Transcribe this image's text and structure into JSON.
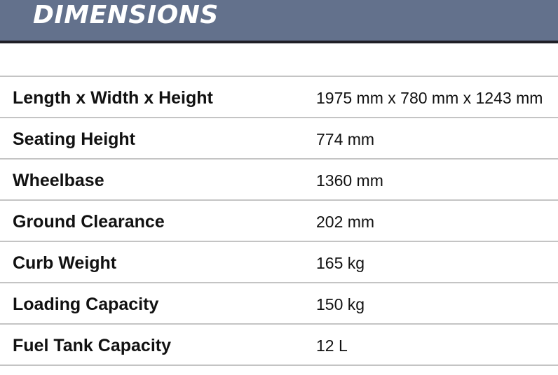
{
  "header": {
    "title": "DIMENSIONS",
    "background_color": "#63718c"
  },
  "rows": [
    {
      "label": "Length x Width x Height",
      "value": "1975 mm x 780 mm x 1243 mm"
    },
    {
      "label": "Seating Height",
      "value": "774 mm"
    },
    {
      "label": "Wheelbase",
      "value": "1360 mm"
    },
    {
      "label": "Ground Clearance",
      "value": "202 mm"
    },
    {
      "label": "Curb Weight",
      "value": "165 kg"
    },
    {
      "label": "Loading Capacity",
      "value": "150 kg"
    },
    {
      "label": "Fuel Tank Capacity",
      "value": "12 L"
    }
  ]
}
